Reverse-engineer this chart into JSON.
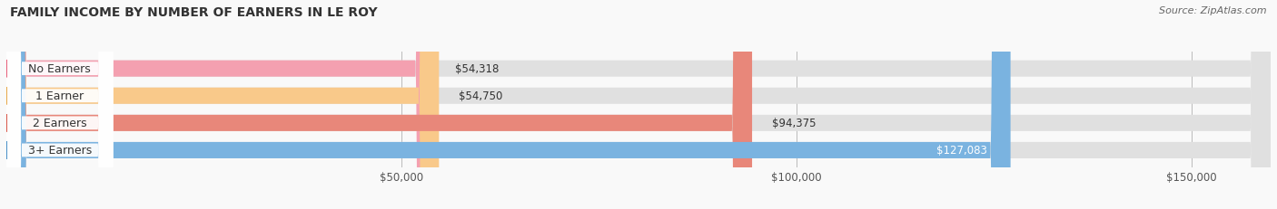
{
  "title": "FAMILY INCOME BY NUMBER OF EARNERS IN LE ROY",
  "source": "Source: ZipAtlas.com",
  "categories": [
    "No Earners",
    "1 Earner",
    "2 Earners",
    "3+ Earners"
  ],
  "values": [
    54318,
    54750,
    94375,
    127083
  ],
  "labels": [
    "$54,318",
    "$54,750",
    "$94,375",
    "$127,083"
  ],
  "bar_colors": [
    "#f4a0b0",
    "#f9c98a",
    "#e8877a",
    "#7ab3e0"
  ],
  "label_circle_colors": [
    "#e8607a",
    "#e8a84a",
    "#d9574a",
    "#4a90c8"
  ],
  "xlim": [
    0,
    160000
  ],
  "xticks": [
    50000,
    100000,
    150000
  ],
  "xticklabels": [
    "$50,000",
    "$100,000",
    "$150,000"
  ],
  "background_color": "#f9f9f9",
  "title_fontsize": 10,
  "source_fontsize": 8,
  "bar_label_fontsize": 8.5,
  "category_fontsize": 9,
  "bar_height": 0.6
}
